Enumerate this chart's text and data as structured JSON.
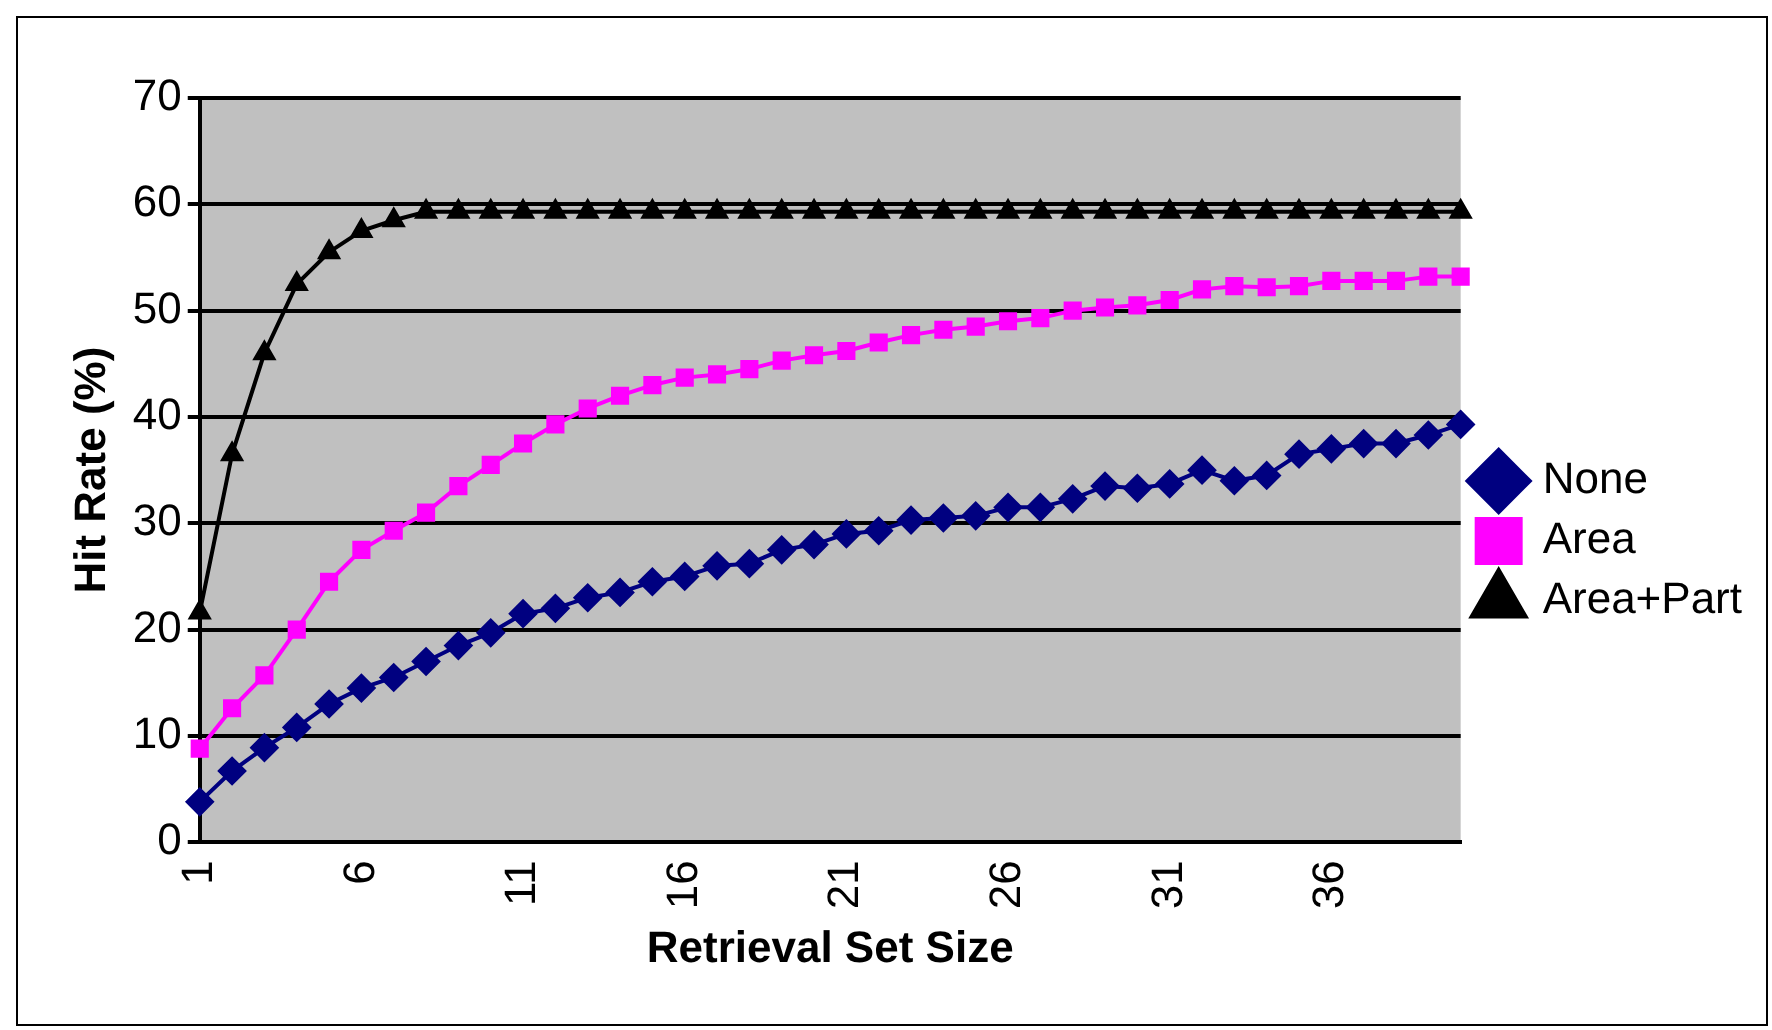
{
  "chart_data": {
    "type": "line",
    "xlabel": "Retrieval Set Size",
    "ylabel": "Hit Rate (%)",
    "categories": [
      "1",
      null,
      null,
      null,
      null,
      "6",
      null,
      null,
      null,
      null,
      "11",
      null,
      null,
      null,
      null,
      "16",
      null,
      null,
      null,
      null,
      "21",
      null,
      null,
      null,
      null,
      "26",
      null,
      null,
      null,
      null,
      "31",
      null,
      null,
      null,
      null,
      "36",
      null,
      null,
      null,
      null
    ],
    "series": [
      {
        "name": "None",
        "color": "#000080",
        "marker": "diamond",
        "values": [
          3.8,
          6.7,
          8.9,
          10.8,
          13,
          14.5,
          15.5,
          17,
          18.5,
          19.7,
          21.5,
          22,
          23,
          23.5,
          24.5,
          25,
          26,
          26.2,
          27.5,
          28,
          29,
          29.3,
          30.3,
          30.5,
          30.7,
          31.5,
          31.5,
          32.3,
          33.5,
          33.3,
          33.7,
          35,
          34,
          34.5,
          36.5,
          37,
          37.5,
          37.5,
          38.3,
          39.3
        ]
      },
      {
        "name": "Area",
        "color": "#ff00ff",
        "marker": "square",
        "values": [
          8.8,
          12.6,
          15.7,
          20,
          24.5,
          27.5,
          29.3,
          31,
          33.5,
          35.5,
          37.5,
          39.3,
          40.8,
          42,
          43,
          43.7,
          44,
          44.5,
          45.3,
          45.8,
          46.2,
          47,
          47.7,
          48.2,
          48.5,
          49,
          49.3,
          50,
          50.3,
          50.5,
          51,
          52,
          52.3,
          52.2,
          52.3,
          52.8,
          52.8,
          52.8,
          53.2,
          53.2
        ]
      },
      {
        "name": "Area+Part",
        "color": "#000000",
        "marker": "triangle",
        "values": [
          21.6,
          36.5,
          46,
          52.5,
          55.5,
          57.5,
          58.5,
          59.3,
          59.3,
          59.3,
          59.3,
          59.3,
          59.3,
          59.3,
          59.3,
          59.3,
          59.3,
          59.3,
          59.3,
          59.3,
          59.3,
          59.3,
          59.3,
          59.3,
          59.3,
          59.3,
          59.3,
          59.3,
          59.3,
          59.3,
          59.3,
          59.3,
          59.3,
          59.3,
          59.3,
          59.3,
          59.3,
          59.3,
          59.3,
          59.3
        ]
      }
    ],
    "ylim": [
      0,
      70
    ],
    "yticks": [
      0,
      10,
      20,
      30,
      40,
      50,
      60,
      70
    ],
    "grid": "y",
    "legend": "right"
  }
}
